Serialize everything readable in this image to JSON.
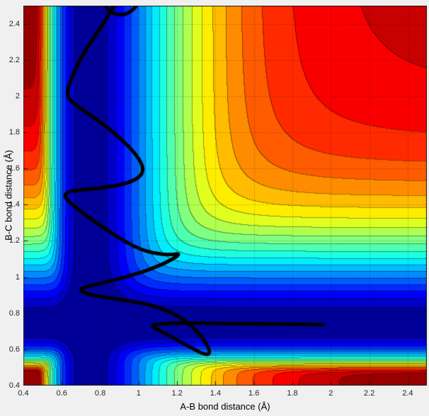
{
  "figure": {
    "background_color": "#f0f0f0",
    "plot_border_color": "#1a1a1a"
  },
  "chart_data": {
    "type": "heatmap",
    "variant": "filled_contour_potential_energy_surface_with_trajectory",
    "title": "",
    "colormap": "jet",
    "xlabel": "A-B bond distance (Å)",
    "ylabel": "B-C bond distance (Å)",
    "xlim": [
      0.4,
      2.5
    ],
    "ylim": [
      0.4,
      2.5
    ],
    "xticks": [
      0.4,
      0.6,
      0.8,
      1,
      1.2,
      1.4,
      1.6,
      1.8,
      2,
      2.2,
      2.4
    ],
    "xtick_labels": [
      "0.4",
      "0.6",
      "0.8",
      "1",
      "1.2",
      "1.4",
      "1.6",
      "1.8",
      "2",
      "2.2",
      "2.4"
    ],
    "yticks": [
      0.4,
      0.6,
      0.8,
      1,
      1.2,
      1.4,
      1.6,
      1.8,
      2,
      2.2,
      2.4
    ],
    "ytick_labels": [
      "0.4",
      "0.6",
      "0.8",
      "1",
      "1.2",
      "1.4",
      "1.6",
      "1.8",
      "2",
      "2.2",
      "2.4"
    ],
    "grid": {
      "visible": true,
      "style": "dotted",
      "color": "rgba(0,0,0,0.35)"
    },
    "contour_levels": 21,
    "surface_model": {
      "description": "Reactive potential energy surface V(rAB,rBC) ~ softmin(Morse(rAB), Morse(rBC)) with Morse(r)=(1-exp(-a(r-re)))^2: L-shaped low-energy valley (dark blue) along rAB~re (vertical channel) and rBC~re (horizontal channel), steep repulsive walls (dark red) at short bond distances, high dissociation plateau (dark red) when both distances are large; filled jet-colormap contour bands with thin level lines",
      "re": 0.742,
      "a": 2.6,
      "softmin_k": 9,
      "v_display_max": 0.98
    },
    "trajectory": {
      "description": "Classical trajectory (thick black): AB vibrates (zigzag) while C approaches down the vertical channel, reacts near the valley corner with a loop, then products exit along the horizontal channel to the right at rBC~0.74",
      "color": "#000000",
      "line_width": 5,
      "points": [
        [
          0.78,
          2.75
        ],
        [
          0.79,
          2.6
        ],
        [
          0.835,
          2.47
        ],
        [
          0.92,
          2.44
        ],
        [
          1.0,
          2.5
        ],
        [
          1.035,
          2.62
        ],
        [
          1.0,
          2.73
        ],
        [
          0.83,
          2.42
        ],
        [
          0.7,
          2.22
        ],
        [
          0.635,
          2.06
        ],
        [
          0.625,
          1.99
        ],
        [
          0.7,
          1.93
        ],
        [
          0.85,
          1.82
        ],
        [
          0.99,
          1.68
        ],
        [
          1.035,
          1.58
        ],
        [
          0.96,
          1.52
        ],
        [
          0.78,
          1.487
        ],
        [
          0.64,
          1.478
        ],
        [
          0.606,
          1.445
        ],
        [
          0.7,
          1.36
        ],
        [
          0.86,
          1.24
        ],
        [
          1.01,
          1.147
        ],
        [
          1.15,
          1.12
        ],
        [
          1.23,
          1.133
        ],
        [
          1.12,
          1.065
        ],
        [
          0.94,
          1.0
        ],
        [
          0.76,
          0.955
        ],
        [
          0.687,
          0.932
        ],
        [
          0.73,
          0.905
        ],
        [
          0.88,
          0.878
        ],
        [
          1.05,
          0.852
        ],
        [
          1.21,
          0.79
        ],
        [
          1.325,
          0.68
        ],
        [
          1.375,
          0.59
        ],
        [
          1.355,
          0.563
        ],
        [
          1.26,
          0.617
        ],
        [
          1.13,
          0.692
        ],
        [
          1.065,
          0.728
        ],
        [
          1.09,
          0.742
        ],
        [
          1.25,
          0.747
        ],
        [
          1.5,
          0.742
        ],
        [
          1.75,
          0.74
        ],
        [
          1.96,
          0.737
        ]
      ]
    }
  }
}
